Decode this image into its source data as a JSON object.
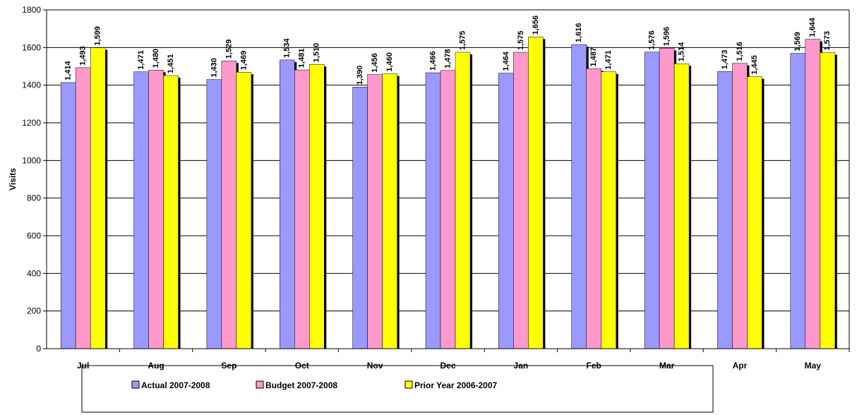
{
  "chart_data": {
    "type": "bar",
    "y_label": "Visits",
    "categories": [
      "Jul",
      "Aug",
      "Sep",
      "Oct",
      "Nov",
      "Dec",
      "Jan",
      "Feb",
      "Mar",
      "Apr",
      "May"
    ],
    "series": [
      {
        "name": "Actual 2007-2008",
        "color": "#9999ff",
        "values": [
          1414,
          1471,
          1430,
          1534,
          1390,
          1466,
          1464,
          1616,
          1576,
          1473,
          1569
        ],
        "value_labels": [
          "1,414",
          "1,471",
          "1,430",
          "1,534",
          "1,390",
          "1,466",
          "1,464",
          "1,616",
          "1,576",
          "1,473",
          "1,569"
        ]
      },
      {
        "name": "Budget 2007-2008",
        "color": "#ff99cc",
        "values": [
          1493,
          1480,
          1529,
          1481,
          1456,
          1478,
          1575,
          1487,
          1596,
          1516,
          1644
        ],
        "value_labels": [
          "1,493",
          "1,480",
          "1,529",
          "1,481",
          "1,456",
          "1,478",
          "1,575",
          "1,487",
          "1,596",
          "1,516",
          "1,644"
        ]
      },
      {
        "name": "Prior Year 2006-2007",
        "color": "#ffff00",
        "values": [
          1599,
          1451,
          1469,
          1510,
          1460,
          1575,
          1656,
          1471,
          1514,
          1445,
          1573
        ],
        "value_labels": [
          "1,599",
          "1,451",
          "1,469",
          "1,510",
          "1,460",
          "1,575",
          "1,656",
          "1,471",
          "1,514",
          "1,445",
          "1,573"
        ]
      }
    ],
    "ylim": [
      0,
      1800
    ],
    "yticks": [
      0,
      200,
      400,
      600,
      800,
      1000,
      1200,
      1400,
      1600,
      1800
    ],
    "grid": true,
    "legend": "bottom"
  }
}
